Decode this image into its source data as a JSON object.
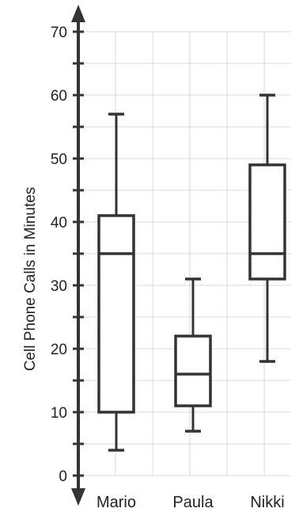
{
  "chart_data": {
    "type": "box",
    "title": "",
    "xlabel": "",
    "ylabel": "Cell Phone Calls in Minutes",
    "ylim": [
      0,
      70
    ],
    "y_ticks": [
      0,
      10,
      20,
      30,
      40,
      50,
      60,
      70
    ],
    "y_minor_step": 5,
    "grid": true,
    "categories": [
      "Mario",
      "Paula",
      "Nikki"
    ],
    "boxes": [
      {
        "category": "Mario",
        "min": 4,
        "q1": 10,
        "median": 35,
        "q3": 41,
        "max": 57
      },
      {
        "category": "Paula",
        "min": 7,
        "q1": 11,
        "median": 16,
        "q3": 22,
        "max": 31
      },
      {
        "category": "Nikki",
        "min": 18,
        "q1": 31,
        "median": 35,
        "q3": 49,
        "max": 60
      }
    ],
    "colors": {
      "box_stroke": "#333333",
      "axis": "#333333",
      "grid": "#d9d9d9",
      "text": "#222222"
    }
  }
}
